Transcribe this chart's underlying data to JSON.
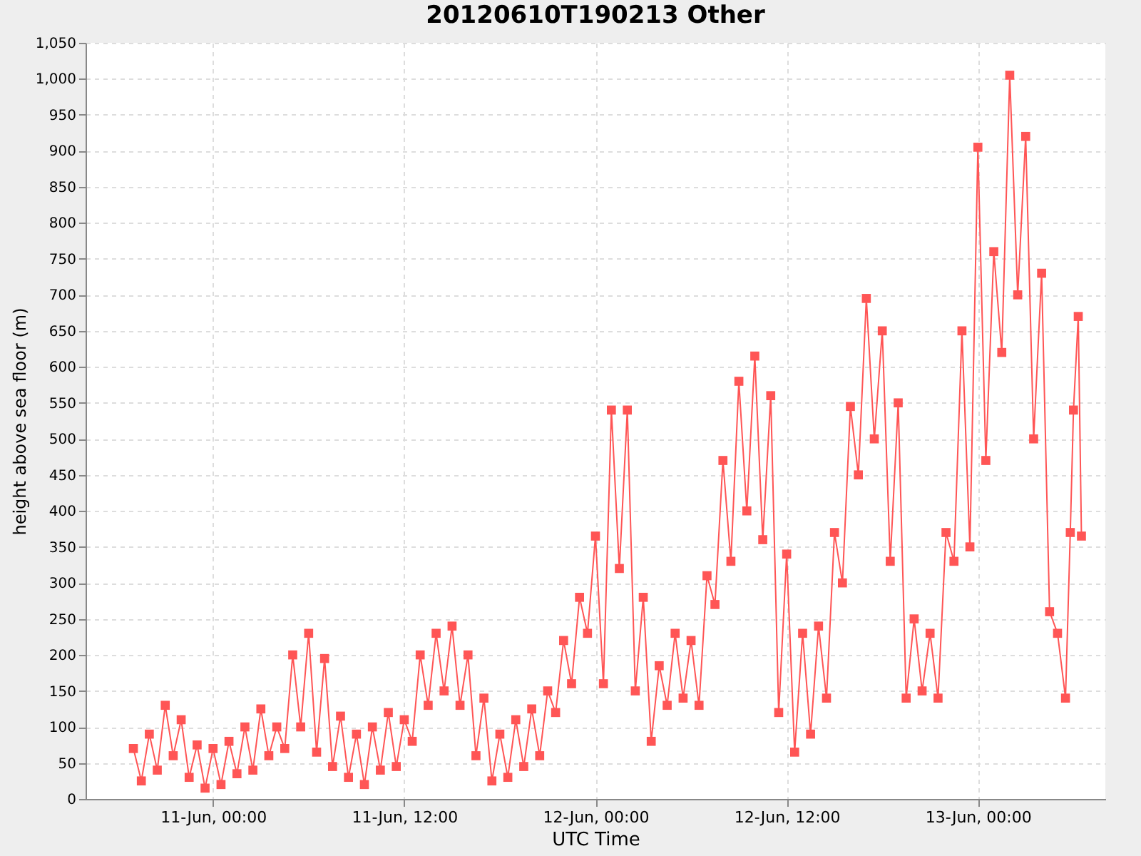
{
  "chart_data": {
    "type": "line",
    "title": "20120610T190213 Other",
    "xlabel": "UTC Time",
    "ylabel": "height above sea floor (m)",
    "x": [
      "2012-06-10T19:00",
      "2012-06-10T19:30",
      "2012-06-10T20:00",
      "2012-06-10T20:30",
      "2012-06-10T21:00",
      "2012-06-10T21:30",
      "2012-06-10T22:00",
      "2012-06-10T22:30",
      "2012-06-10T23:00",
      "2012-06-10T23:30",
      "2012-06-11T00:00",
      "2012-06-11T00:30",
      "2012-06-11T01:00",
      "2012-06-11T01:30",
      "2012-06-11T02:00",
      "2012-06-11T02:30",
      "2012-06-11T03:00",
      "2012-06-11T03:30",
      "2012-06-11T04:00",
      "2012-06-11T04:30",
      "2012-06-11T05:00",
      "2012-06-11T05:30",
      "2012-06-11T06:00",
      "2012-06-11T06:30",
      "2012-06-11T07:00",
      "2012-06-11T07:30",
      "2012-06-11T08:00",
      "2012-06-11T08:30",
      "2012-06-11T09:00",
      "2012-06-11T09:30",
      "2012-06-11T10:00",
      "2012-06-11T10:30",
      "2012-06-11T11:00",
      "2012-06-11T11:30",
      "2012-06-11T12:00",
      "2012-06-11T12:30",
      "2012-06-11T13:00",
      "2012-06-11T13:30",
      "2012-06-11T14:00",
      "2012-06-11T14:30",
      "2012-06-11T15:00",
      "2012-06-11T15:30",
      "2012-06-11T16:00",
      "2012-06-11T16:30",
      "2012-06-11T17:00",
      "2012-06-11T17:30",
      "2012-06-11T18:00",
      "2012-06-11T18:30",
      "2012-06-11T19:00",
      "2012-06-11T19:30",
      "2012-06-11T20:00",
      "2012-06-11T20:30",
      "2012-06-11T21:00",
      "2012-06-11T21:30",
      "2012-06-11T22:00",
      "2012-06-11T22:30",
      "2012-06-11T23:00",
      "2012-06-11T23:30",
      "2012-06-12T00:00",
      "2012-06-12T00:30",
      "2012-06-12T01:00",
      "2012-06-12T01:30",
      "2012-06-12T02:00",
      "2012-06-12T02:30",
      "2012-06-12T03:00",
      "2012-06-12T03:30",
      "2012-06-12T04:00",
      "2012-06-12T04:30",
      "2012-06-12T05:00",
      "2012-06-12T05:30",
      "2012-06-12T06:00",
      "2012-06-12T06:30",
      "2012-06-12T07:00",
      "2012-06-12T07:30",
      "2012-06-12T08:00",
      "2012-06-12T08:30",
      "2012-06-12T09:00",
      "2012-06-12T09:30",
      "2012-06-12T10:00",
      "2012-06-12T10:30",
      "2012-06-12T11:00",
      "2012-06-12T11:30",
      "2012-06-12T12:00",
      "2012-06-12T12:30",
      "2012-06-12T13:00",
      "2012-06-12T13:30",
      "2012-06-12T14:00",
      "2012-06-12T14:30",
      "2012-06-12T15:00",
      "2012-06-12T15:30",
      "2012-06-12T16:00",
      "2012-06-12T16:30",
      "2012-06-12T17:00",
      "2012-06-12T17:30",
      "2012-06-12T18:00",
      "2012-06-12T18:30",
      "2012-06-12T19:00",
      "2012-06-12T19:30",
      "2012-06-12T20:00",
      "2012-06-12T20:30",
      "2012-06-12T21:00",
      "2012-06-12T21:30",
      "2012-06-12T22:00",
      "2012-06-12T22:30",
      "2012-06-12T23:00",
      "2012-06-12T23:30",
      "2012-06-13T00:00",
      "2012-06-13T00:30",
      "2012-06-13T01:00",
      "2012-06-13T01:30",
      "2012-06-13T02:00",
      "2012-06-13T02:30",
      "2012-06-13T03:00",
      "2012-06-13T03:30",
      "2012-06-13T04:00",
      "2012-06-13T04:30",
      "2012-06-13T05:00",
      "2012-06-13T05:30",
      "2012-06-13T05:48",
      "2012-06-13T06:00",
      "2012-06-13T06:18",
      "2012-06-13T06:30"
    ],
    "series": [
      {
        "color": "#ff5555",
        "values": [
          70,
          25,
          90,
          40,
          130,
          60,
          110,
          30,
          75,
          15,
          70,
          20,
          80,
          35,
          100,
          40,
          125,
          60,
          100,
          70,
          200,
          100,
          230,
          65,
          195,
          45,
          115,
          30,
          90,
          20,
          100,
          40,
          120,
          45,
          110,
          80,
          200,
          130,
          230,
          150,
          240,
          130,
          200,
          60,
          140,
          25,
          90,
          30,
          110,
          45,
          125,
          60,
          150,
          120,
          220,
          160,
          280,
          230,
          365,
          160,
          540,
          320,
          540,
          150,
          280,
          80,
          185,
          130,
          230,
          140,
          220,
          130,
          310,
          270,
          470,
          330,
          580,
          400,
          615,
          360,
          560,
          120,
          340,
          65,
          230,
          90,
          240,
          140,
          370,
          300,
          545,
          450,
          695,
          500,
          650,
          330,
          550,
          140,
          250,
          150,
          230,
          140,
          370,
          330,
          650,
          350,
          905,
          470,
          760,
          620,
          1005,
          700,
          920,
          500,
          730,
          260,
          230,
          140,
          370,
          540,
          670,
          365
        ]
      }
    ],
    "xlim": [
      "2012-06-10T16:00",
      "2012-06-13T08:00"
    ],
    "xticks": [
      {
        "value": "2012-06-11T00:00",
        "label": "11-Jun, 00:00"
      },
      {
        "value": "2012-06-11T12:00",
        "label": "11-Jun, 12:00"
      },
      {
        "value": "2012-06-12T00:00",
        "label": "12-Jun, 00:00"
      },
      {
        "value": "2012-06-12T12:00",
        "label": "12-Jun, 12:00"
      },
      {
        "value": "2012-06-13T00:00",
        "label": "13-Jun, 00:00"
      }
    ],
    "ylim": [
      0,
      1050
    ],
    "yticks": [
      0,
      50,
      100,
      150,
      200,
      250,
      300,
      350,
      400,
      450,
      500,
      550,
      600,
      650,
      700,
      750,
      800,
      850,
      900,
      950,
      {
        "value": 1000,
        "label": "1,000"
      },
      {
        "value": 1050,
        "label": "1,050"
      }
    ],
    "grid": true,
    "legend": false,
    "marker": "square",
    "line_style": "solid"
  }
}
